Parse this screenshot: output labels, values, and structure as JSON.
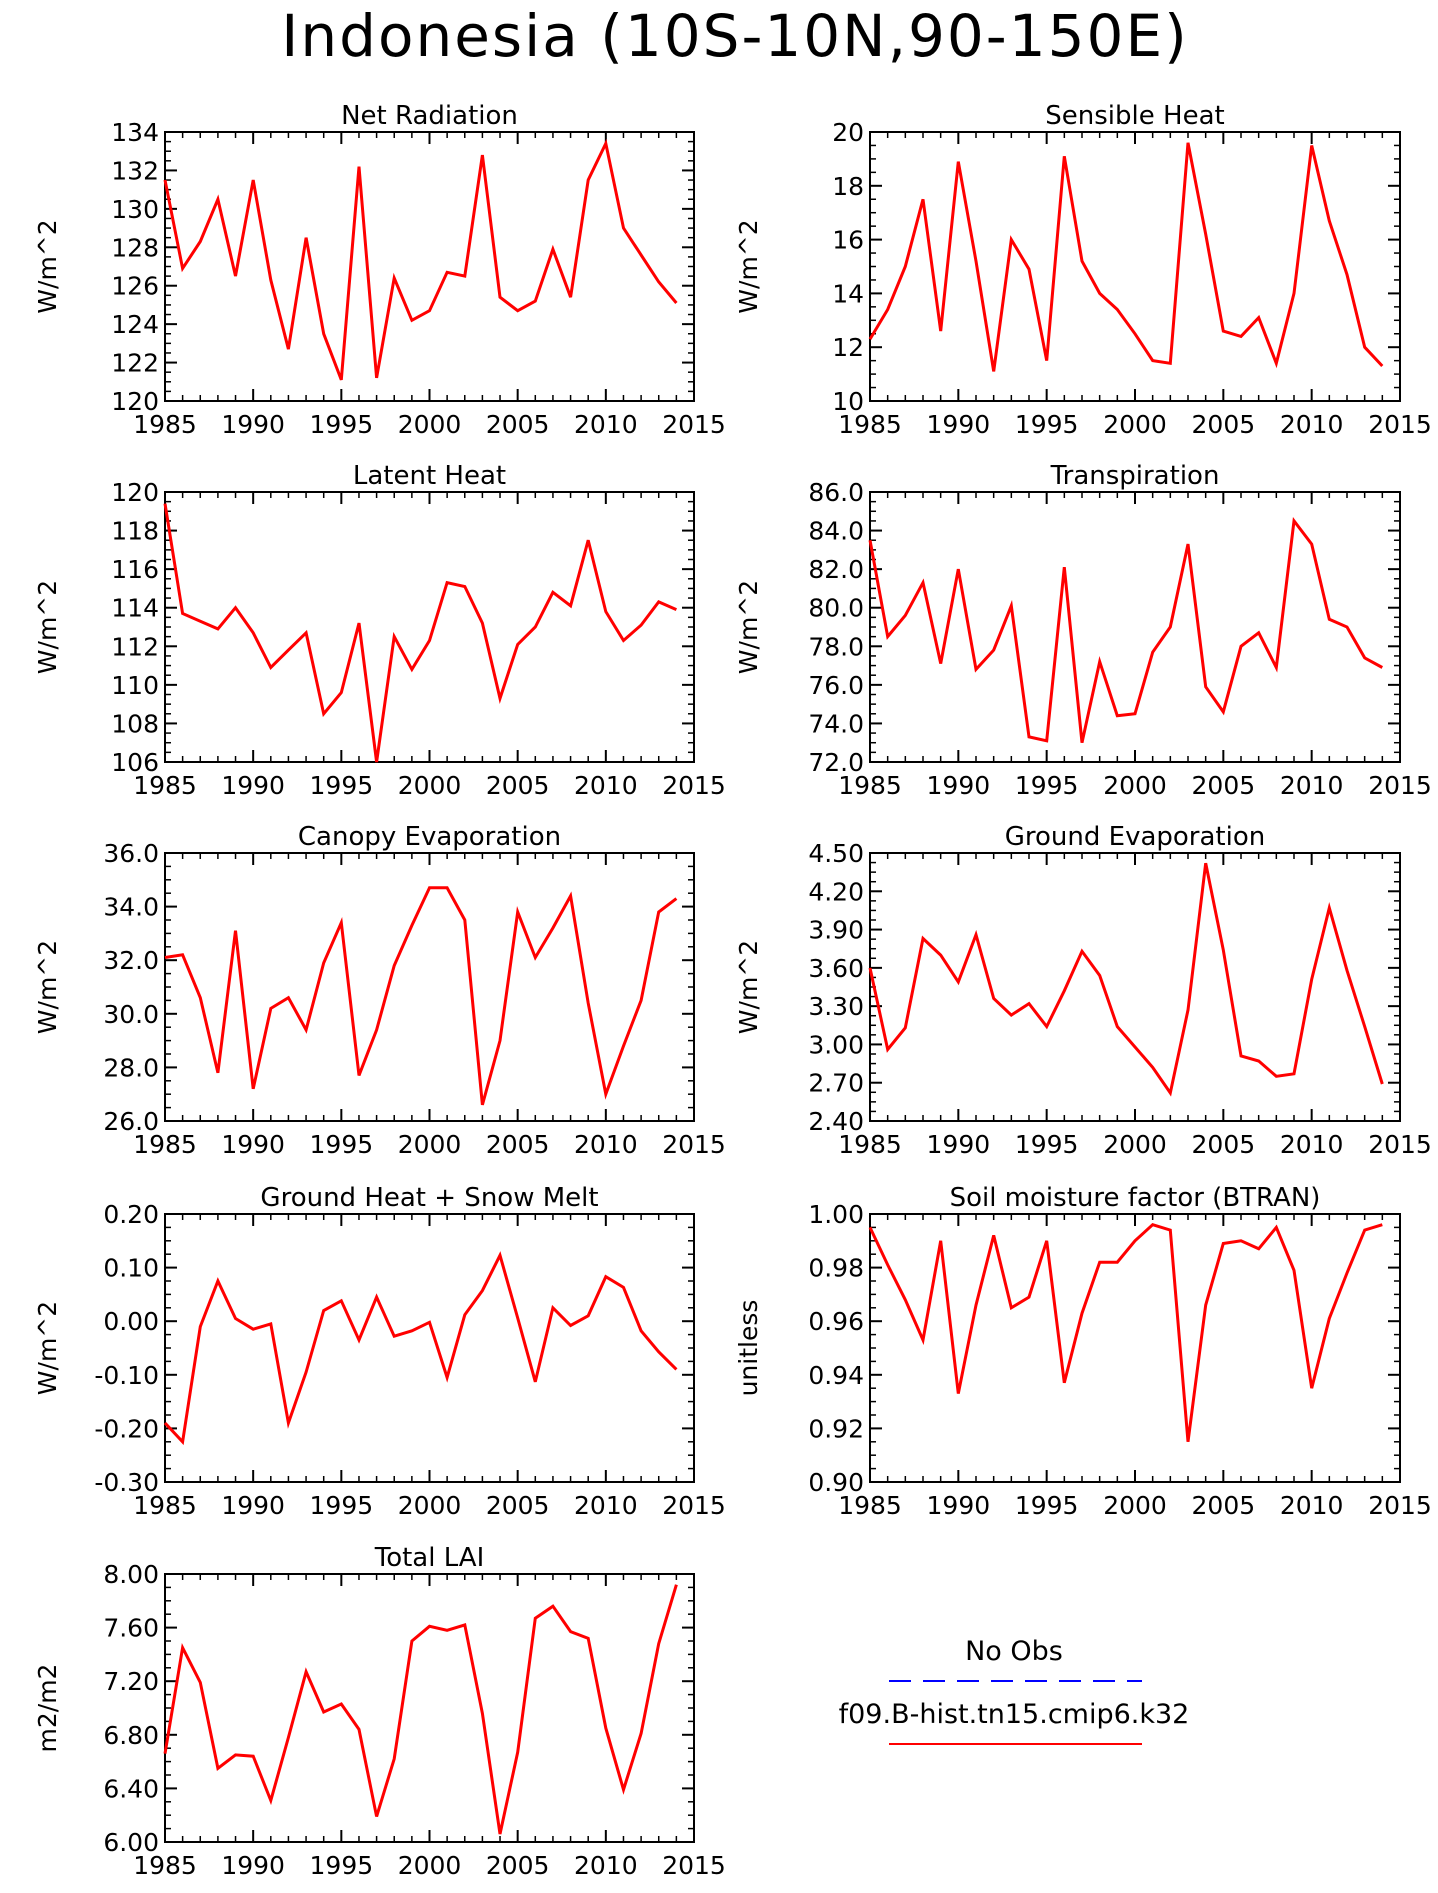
{
  "title": "Indonesia (10S-10N,90-150E)",
  "colors": {
    "model": "#ff0000",
    "obs": "#0000ff",
    "axes": "#000000"
  },
  "legend": {
    "obs_label": "No Obs",
    "model_label": "f09.B-hist.tn15.cmip6.k32"
  },
  "chart_data": [
    {
      "type": "line",
      "title": "Net Radiation",
      "ylabel": "W/m^2",
      "xlim": [
        1985,
        2015
      ],
      "ylim": [
        120,
        134
      ],
      "xticks": [
        "1985",
        "1990",
        "1995",
        "2000",
        "2005",
        "2010",
        "2015"
      ],
      "yticks": [
        "120",
        "122",
        "124",
        "126",
        "128",
        "130",
        "132",
        "134"
      ],
      "x_start": 1985,
      "series": [
        {
          "values": [
            131.5,
            126.9,
            128.3,
            130.5,
            126.5,
            131.5,
            126.3,
            122.7,
            128.5,
            123.5,
            121.1,
            132.2,
            121.2,
            126.4,
            124.2,
            124.7,
            126.7,
            126.5,
            132.8,
            125.4,
            124.7,
            125.2,
            127.9,
            125.4,
            131.5,
            133.4,
            129.0,
            127.6,
            126.2,
            125.1
          ]
        }
      ]
    },
    {
      "type": "line",
      "title": "Sensible Heat",
      "ylabel": "W/m^2",
      "xlim": [
        1985,
        2015
      ],
      "ylim": [
        10,
        20
      ],
      "xticks": [
        "1985",
        "1990",
        "1995",
        "2000",
        "2005",
        "2010",
        "2015"
      ],
      "yticks": [
        "10",
        "12",
        "14",
        "16",
        "18",
        "20"
      ],
      "x_start": 1985,
      "series": [
        {
          "values": [
            12.3,
            13.4,
            15.0,
            17.5,
            12.6,
            18.9,
            15.2,
            11.1,
            16.0,
            14.9,
            11.5,
            19.1,
            15.2,
            14.0,
            13.4,
            12.5,
            11.5,
            11.4,
            19.6,
            16.2,
            12.6,
            12.4,
            13.1,
            11.4,
            14.0,
            19.5,
            16.7,
            14.7,
            12.0,
            11.3
          ]
        }
      ]
    },
    {
      "type": "line",
      "title": "Latent Heat",
      "ylabel": "W/m^2",
      "xlim": [
        1985,
        2015
      ],
      "ylim": [
        106,
        120
      ],
      "xticks": [
        "1985",
        "1990",
        "1995",
        "2000",
        "2005",
        "2010",
        "2015"
      ],
      "yticks": [
        "106",
        "108",
        "110",
        "112",
        "114",
        "116",
        "118",
        "120"
      ],
      "x_start": 1985,
      "series": [
        {
          "values": [
            119.4,
            113.7,
            113.3,
            112.9,
            114.0,
            112.7,
            110.9,
            111.8,
            112.7,
            108.5,
            109.6,
            113.2,
            106.0,
            112.5,
            110.8,
            112.3,
            115.3,
            115.1,
            113.2,
            109.3,
            112.1,
            113.0,
            114.8,
            114.1,
            117.5,
            113.8,
            112.3,
            113.1,
            114.3,
            113.9
          ]
        }
      ]
    },
    {
      "type": "line",
      "title": "Transpiration",
      "ylabel": "W/m^2",
      "xlim": [
        1985,
        2015
      ],
      "ylim": [
        72,
        86
      ],
      "xticks": [
        "1985",
        "1990",
        "1995",
        "2000",
        "2005",
        "2010",
        "2015"
      ],
      "yticks": [
        "72.0",
        "74.0",
        "76.0",
        "78.0",
        "80.0",
        "82.0",
        "84.0",
        "86.0"
      ],
      "x_start": 1985,
      "series": [
        {
          "values": [
            83.5,
            78.5,
            79.6,
            81.3,
            77.1,
            82.0,
            76.8,
            77.8,
            80.1,
            73.3,
            73.1,
            82.1,
            73.0,
            77.2,
            74.4,
            74.5,
            77.7,
            79.0,
            83.3,
            75.9,
            74.6,
            78.0,
            78.7,
            76.9,
            84.5,
            83.3,
            79.4,
            79.0,
            77.4,
            76.9
          ]
        }
      ]
    },
    {
      "type": "line",
      "title": "Canopy Evaporation",
      "ylabel": "W/m^2",
      "xlim": [
        1985,
        2015
      ],
      "ylim": [
        26,
        36
      ],
      "xticks": [
        "1985",
        "1990",
        "1995",
        "2000",
        "2005",
        "2010",
        "2015"
      ],
      "yticks": [
        "26.0",
        "28.0",
        "30.0",
        "32.0",
        "34.0",
        "36.0"
      ],
      "x_start": 1985,
      "series": [
        {
          "values": [
            32.1,
            32.2,
            30.6,
            27.8,
            33.1,
            27.2,
            30.2,
            30.6,
            29.4,
            31.9,
            33.4,
            27.7,
            29.4,
            31.8,
            33.3,
            34.7,
            34.7,
            33.5,
            26.6,
            29.0,
            33.8,
            32.1,
            33.2,
            34.4,
            30.4,
            27.0,
            28.8,
            30.5,
            33.8,
            34.3
          ]
        }
      ]
    },
    {
      "type": "line",
      "title": "Ground Evaporation",
      "ylabel": "W/m^2",
      "xlim": [
        1985,
        2015
      ],
      "ylim": [
        2.4,
        4.5
      ],
      "xticks": [
        "1985",
        "1990",
        "1995",
        "2000",
        "2005",
        "2010",
        "2015"
      ],
      "yticks": [
        "2.40",
        "2.70",
        "3.00",
        "3.30",
        "3.60",
        "3.90",
        "4.20",
        "4.50"
      ],
      "x_start": 1985,
      "series": [
        {
          "values": [
            3.6,
            2.96,
            3.13,
            3.83,
            3.7,
            3.49,
            3.86,
            3.36,
            3.23,
            3.32,
            3.14,
            3.42,
            3.73,
            3.54,
            3.14,
            2.98,
            2.82,
            2.62,
            3.27,
            4.42,
            3.74,
            2.91,
            2.87,
            2.75,
            2.77,
            3.51,
            4.07,
            3.58,
            3.14,
            2.69
          ]
        }
      ]
    },
    {
      "type": "line",
      "title": "Ground Heat + Snow Melt",
      "ylabel": "W/m^2",
      "xlim": [
        1985,
        2015
      ],
      "ylim": [
        -0.3,
        0.2
      ],
      "xticks": [
        "1985",
        "1990",
        "1995",
        "2000",
        "2005",
        "2010",
        "2015"
      ],
      "yticks": [
        "-0.30",
        "-0.20",
        "-0.10",
        "0.00",
        "0.10",
        "0.20"
      ],
      "x_start": 1985,
      "series": [
        {
          "values": [
            -0.19,
            -0.225,
            -0.01,
            0.075,
            0.005,
            -0.015,
            -0.005,
            -0.19,
            -0.095,
            0.02,
            0.038,
            -0.035,
            0.045,
            -0.028,
            -0.018,
            -0.002,
            -0.105,
            0.012,
            0.057,
            0.123,
            0.006,
            -0.113,
            0.025,
            -0.008,
            0.01,
            0.083,
            0.063,
            -0.018,
            -0.057,
            -0.09
          ]
        }
      ]
    },
    {
      "type": "line",
      "title": "Soil moisture factor (BTRAN)",
      "ylabel": "unitless",
      "xlim": [
        1985,
        2015
      ],
      "ylim": [
        0.9,
        1.0
      ],
      "xticks": [
        "1985",
        "1990",
        "1995",
        "2000",
        "2005",
        "2010",
        "2015"
      ],
      "yticks": [
        "0.90",
        "0.92",
        "0.94",
        "0.96",
        "0.98",
        "1.00"
      ],
      "x_start": 1985,
      "series": [
        {
          "values": [
            0.995,
            0.981,
            0.968,
            0.953,
            0.99,
            0.933,
            0.966,
            0.992,
            0.965,
            0.969,
            0.99,
            0.937,
            0.963,
            0.982,
            0.982,
            0.99,
            0.996,
            0.994,
            0.915,
            0.966,
            0.989,
            0.99,
            0.987,
            0.995,
            0.979,
            0.935,
            0.961,
            0.978,
            0.994,
            0.996
          ]
        }
      ]
    },
    {
      "type": "line",
      "title": "Total LAI",
      "ylabel": "m2/m2",
      "xlim": [
        1985,
        2015
      ],
      "ylim": [
        6.0,
        8.0
      ],
      "xticks": [
        "1985",
        "1990",
        "1995",
        "2000",
        "2005",
        "2010",
        "2015"
      ],
      "yticks": [
        "6.00",
        "6.40",
        "6.80",
        "7.20",
        "7.60",
        "8.00"
      ],
      "x_start": 1985,
      "series": [
        {
          "values": [
            6.66,
            7.45,
            7.19,
            6.55,
            6.65,
            6.64,
            6.31,
            6.78,
            7.27,
            6.97,
            7.03,
            6.84,
            6.19,
            6.62,
            7.5,
            7.61,
            7.58,
            7.62,
            6.96,
            6.06,
            6.67,
            7.67,
            7.76,
            7.57,
            7.52,
            6.85,
            6.39,
            6.81,
            7.48,
            7.92
          ]
        }
      ]
    }
  ]
}
